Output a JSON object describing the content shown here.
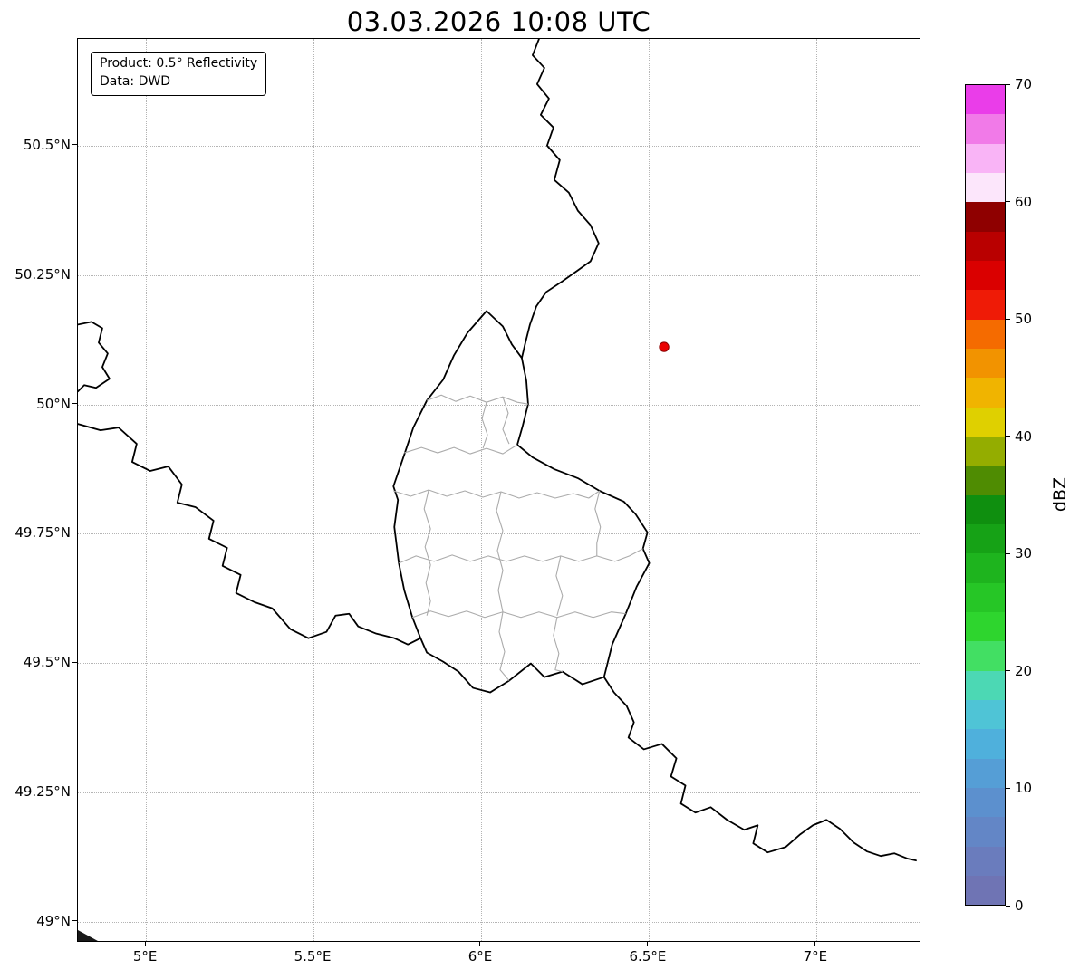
{
  "title": "03.03.2026 10:08 UTC",
  "info_box": {
    "line1": "Product: 0.5° Reflectivity",
    "line2": "Data: DWD"
  },
  "axes": {
    "x_ticks": [
      {
        "value": 5.0,
        "label": "5°E"
      },
      {
        "value": 5.5,
        "label": "5.5°E"
      },
      {
        "value": 6.0,
        "label": "6°E"
      },
      {
        "value": 6.5,
        "label": "6.5°E"
      },
      {
        "value": 7.0,
        "label": "7°E"
      }
    ],
    "y_ticks": [
      {
        "value": 50.5,
        "label": "50.5°N"
      },
      {
        "value": 50.25,
        "label": "50.25°N"
      },
      {
        "value": 50.0,
        "label": "50°N"
      },
      {
        "value": 49.75,
        "label": "49.75°N"
      },
      {
        "value": 49.5,
        "label": "49.5°N"
      },
      {
        "value": 49.25,
        "label": "49.25°N"
      },
      {
        "value": 49.0,
        "label": "49°N"
      }
    ]
  },
  "colorbar": {
    "label": "dBZ",
    "min": 0,
    "max": 70,
    "tick_values": [
      0,
      10,
      20,
      30,
      40,
      50,
      60,
      70
    ],
    "segment_colors_bottom_to_top": [
      "#6f74b4",
      "#6a7cbd",
      "#6386c6",
      "#5c90ce",
      "#559ed6",
      "#4fb0dc",
      "#4fc4d6",
      "#4cd8b4",
      "#42df63",
      "#2ed52e",
      "#26c626",
      "#1eb41e",
      "#16a216",
      "#0f8f0f",
      "#4f8c02",
      "#94ad00",
      "#dfd000",
      "#f0b400",
      "#f29300",
      "#f56b00",
      "#ef1b06",
      "#da0000",
      "#b90000",
      "#8f0000",
      "#fce6fb",
      "#f9b4f6",
      "#f17ae8",
      "#ea3de9"
    ]
  },
  "map": {
    "border_color": "#000000",
    "canton_border_color": "#ababab",
    "marker": {
      "lon": 6.55,
      "lat": 50.11,
      "color": "#ea0000",
      "edge_color": "#8b0000"
    },
    "corner_shape": "0,986 22,998 0,998",
    "national_borders": [
      "M510,0 L503,18 L516,32 L508,50 L521,66 L512,84 L526,98 L519,118 L533,134 L527,156 L543,170 L553,190 L567,206 L576,226 L567,246 L553,256 L536,268 L518,280 L507,296 L500,316 L495,336 L491,353",
      "M452,301 L470,318 L480,338 L491,353 L496,378 L498,404 L492,428 L486,449 L503,463 L527,476 L553,486 L577,500 L604,512 L617,526 L630,546 L625,564 L632,580 L618,606 L606,636 L591,670 L582,706 L558,714 L536,700 L516,706 L501,691 L477,710 L456,723 L437,718 L421,700 L404,689 L386,679 L379,663 L370,640 L361,610 L355,580 L350,540 L354,510 L349,495 L361,460 L371,430 L386,400 L404,377 L416,350 L431,325 Z",
      "M0,316 L15,313 L27,320 L23,336 L33,348 L27,363 L35,376 L20,386 L7,383 L0,390",
      "M0,426 L25,433 L45,430 L65,448 L60,468 L80,478 L100,473 L115,493 L110,513 L130,518 L150,533 L145,553 L165,563 L160,583 L180,593 L175,613 L195,623 L215,630 L235,653 L255,663 L275,656 L285,638 L300,636 L310,650 L330,658 L350,663 L365,670 L379,663",
      "M582,706 L593,723 L607,738 L615,756 L609,773 L626,786 L646,780 L662,796 L656,816 L672,826 L667,846 L683,856 L700,850 L718,864 L737,875 L752,870 L747,890 L763,900 L783,894 L799,880 L813,870 L828,864 L843,874 L858,889 L873,899 L888,904 L903,901 L918,907 L927,909"
    ],
    "canton_borders": [
      "M386,400 L402,394 L418,401 L434,395 L452,402 L470,396 L486,402 L498,404",
      "M361,458 L380,452 L398,458 L416,452 L434,459 L452,453 L470,459 L486,449",
      "M470,396 L476,414 L470,432 L477,448",
      "M349,500 L368,506 L388,499 L408,506 L428,500 L448,507 L468,501 L488,508 L508,502 L528,508 L548,503 L565,508 L577,500",
      "M355,580 L374,572 L394,578 L414,571 L434,578 L454,572 L474,578 L494,572 L514,578 L534,572 L554,578 L574,572 L594,578 L610,572 L625,564",
      "M370,640 L390,633 L410,639 L430,633 L450,640 L470,634 L490,640 L510,634 L530,640 L550,634 L570,640 L590,634 L606,636",
      "M388,499 L383,520 L390,542 L384,562 L390,582 L385,602 L390,622 L386,638",
      "M468,501 L463,522 L470,544 L464,566 L470,588 L465,610 L470,634",
      "M534,572 L529,594 L536,616 L530,638",
      "M470,634 L466,656 L472,678 L467,698 L477,710",
      "M530,640 L526,660 L532,680 L528,698 L536,700",
      "M577,500 L572,520 L578,540 L574,558 L574,572",
      "M452,402 L447,420 L453,438 L448,453"
    ]
  },
  "chart_data": {
    "type": "heatmap",
    "title": "03.03.2026 10:08 UTC",
    "x_tick_labels": [
      "5°E",
      "5.5°E",
      "6°E",
      "6.5°E",
      "7°E"
    ],
    "y_tick_labels": [
      "49°N",
      "49.25°N",
      "49.5°N",
      "49.75°N",
      "50°N",
      "50.25°N",
      "50.5°N"
    ],
    "colorbar": {
      "label": "dBZ",
      "range": [
        0,
        70
      ],
      "ticks": [
        0,
        10,
        20,
        30,
        40,
        50,
        60,
        70
      ]
    },
    "grid": "dotted",
    "points": [
      {
        "name": "radar-site-marker",
        "lon": 6.55,
        "lat": 50.11
      }
    ],
    "reflectivity_echoes": []
  }
}
